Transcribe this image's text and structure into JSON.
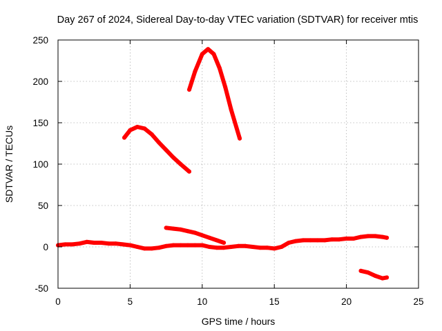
{
  "chart_data": {
    "type": "line",
    "title": "Day 267 of 2024, Sidereal Day-to-day VTEC variation (SDTVAR) for receiver mtis",
    "xlabel": "GPS time / hours",
    "ylabel": "SDTVAR / TECUs",
    "xlim": [
      0,
      25
    ],
    "ylim": [
      -50,
      250
    ],
    "xticks": [
      0,
      5,
      10,
      15,
      20,
      25
    ],
    "yticks": [
      -50,
      0,
      50,
      100,
      150,
      200,
      250
    ],
    "grid": true,
    "legend": "none",
    "color": "#ff0000",
    "series": [
      {
        "name": "arc-1",
        "x": [
          0,
          0.5,
          1,
          1.5,
          2,
          2.5,
          3,
          3.5,
          4,
          4.5,
          5,
          5.5,
          6,
          6.5,
          7,
          7.5,
          8,
          8.5,
          9,
          9.5,
          10,
          10.5,
          11,
          11.5,
          12,
          12.5,
          13,
          13.5,
          14,
          14.5,
          15,
          15.5,
          16,
          16.5,
          17,
          17.5,
          18,
          18.5,
          19,
          19.5,
          20,
          20.5,
          21,
          21.5,
          22,
          22.5,
          22.8
        ],
        "y": [
          2,
          3,
          3,
          4,
          6,
          5,
          5,
          4,
          4,
          3,
          2,
          0,
          -2,
          -2,
          -1,
          1,
          2,
          2,
          2,
          2,
          2,
          0,
          -1,
          -1,
          0,
          1,
          1,
          0,
          -1,
          -1,
          -2,
          0,
          5,
          7,
          8,
          8,
          8,
          8,
          9,
          9,
          10,
          10,
          12,
          13,
          13,
          12,
          11
        ]
      },
      {
        "name": "arc-2",
        "x": [
          4.6,
          5,
          5.5,
          6,
          6.5,
          7,
          7.5,
          8,
          8.5,
          9.1
        ],
        "y": [
          132,
          141,
          145,
          143,
          136,
          126,
          117,
          108,
          100,
          91
        ]
      },
      {
        "name": "arc-3",
        "x": [
          9.1,
          9.5,
          10,
          10.4,
          10.8,
          11.2,
          11.6,
          12,
          12.6
        ],
        "y": [
          190,
          212,
          233,
          239,
          233,
          216,
          193,
          166,
          131
        ]
      },
      {
        "name": "arc-4",
        "x": [
          7.5,
          8,
          8.5,
          9,
          9.5,
          10,
          10.5,
          11,
          11.5
        ],
        "y": [
          23,
          22,
          21,
          19,
          17,
          14,
          11,
          8,
          5
        ]
      },
      {
        "name": "arc-5",
        "x": [
          21,
          21.5,
          22,
          22.5,
          22.8
        ],
        "y": [
          -29,
          -31,
          -35,
          -38,
          -37
        ]
      }
    ]
  }
}
